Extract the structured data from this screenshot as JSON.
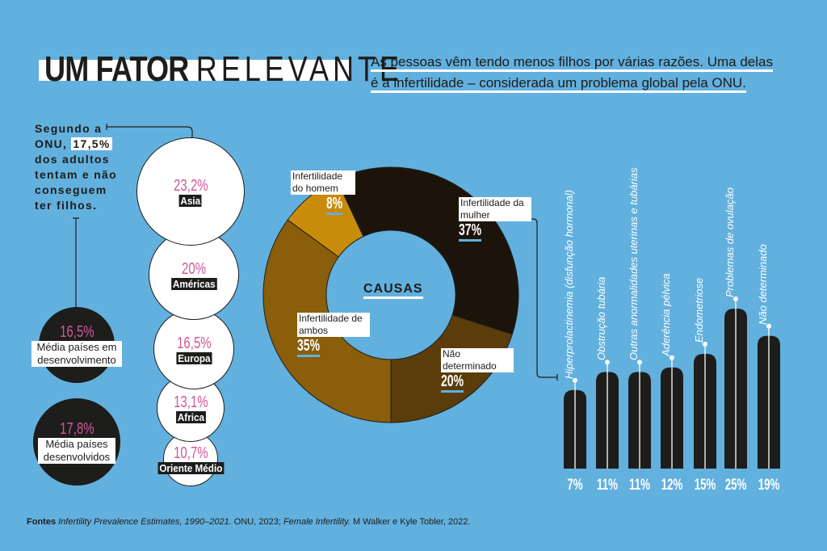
{
  "header": {
    "title_bold": "UM FATOR",
    "title_light": "RELEVANTE",
    "subtitle_line1": "As pessoas vêm tendo menos filhos por várias razões. Uma delas",
    "subtitle_line2": "é a infertilidade – considerada um problema global pela ONU."
  },
  "intro": {
    "before": "Segundo a ONU, ",
    "highlight": "17,5%",
    "after": " dos adultos tentam e não conseguem ter filhos."
  },
  "colors": {
    "background": "#62b0de",
    "pink": "#d2569b",
    "dark": "#1d1d1b"
  },
  "chart_data": [
    {
      "type": "bubble",
      "title": "",
      "categories": [
        "Asia",
        "Américas",
        "Europa",
        "Africa",
        "Oriente Médio"
      ],
      "values": [
        23.2,
        20,
        16.5,
        13.1,
        10.7
      ],
      "labels": [
        "23,2%",
        "20%",
        "16,5%",
        "13,1%",
        "10,7%"
      ]
    },
    {
      "type": "bubble",
      "categories": [
        "Média países em desenvolvimento",
        "Média países desenvolvidos"
      ],
      "values": [
        16.5,
        17.8
      ],
      "labels": [
        "16,5%",
        "17,8%"
      ]
    },
    {
      "type": "pie",
      "title": "CAUSAS",
      "categories": [
        "Infertilidade da mulher",
        "Não determinado",
        "Infertilidade de ambos",
        "Infertilidade do homem"
      ],
      "values": [
        37,
        20,
        35,
        8
      ],
      "labels": [
        "37%",
        "20%",
        "35%",
        "8%"
      ],
      "colors": [
        "#1c140a",
        "#5a3d0a",
        "#8a5e0a",
        "#c88b0a"
      ]
    },
    {
      "type": "bar",
      "categories": [
        "Hiperprolactinemia (disfunção hormonal)",
        "Obstrução tubária",
        "Outras anormalidades uterinas e tubárias",
        "Aderência pélvica",
        "Endometriose",
        "Problemas de ovulação",
        "Não determinado"
      ],
      "values": [
        7,
        11,
        11,
        12,
        15,
        25,
        19
      ],
      "labels": [
        "7%",
        "11%",
        "11%",
        "12%",
        "15%",
        "25%",
        "19%"
      ]
    }
  ],
  "footer": {
    "label": "Fontes",
    "src1": "Infertility Prevalence Estimates, 1990–2021.",
    "src1b": " ONU, 2023; ",
    "src2": "Female Infertility.",
    "src2b": " M Walker e Kyle Tobler, 2022."
  }
}
